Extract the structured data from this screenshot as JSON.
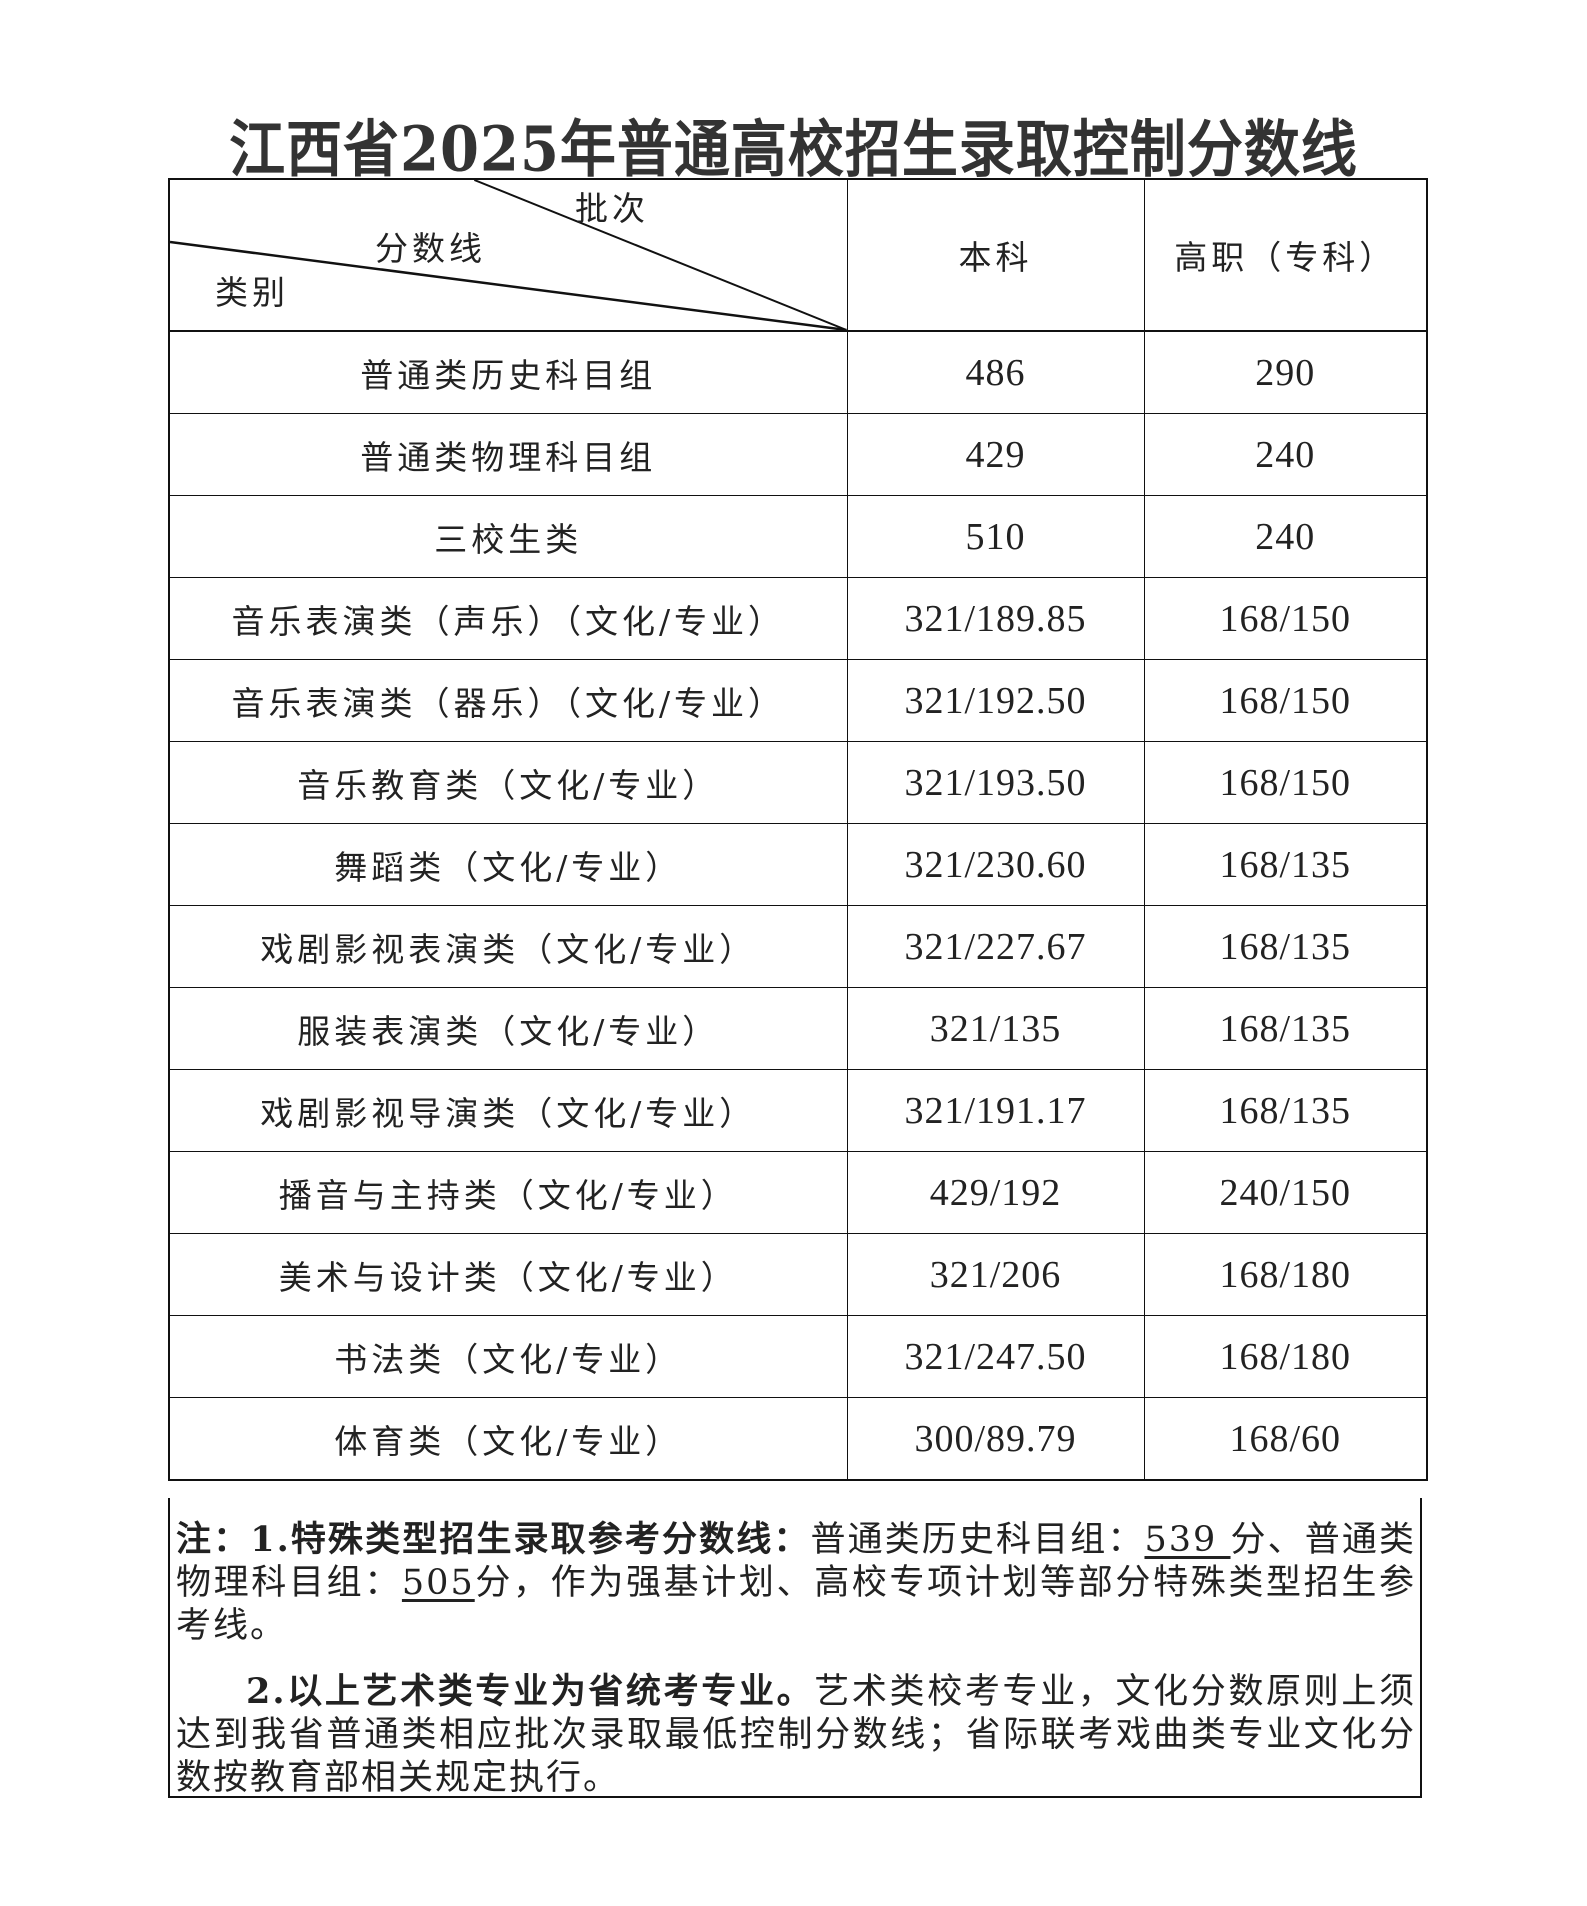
{
  "title": "江西省2025年普通高校招生录取控制分数线",
  "header": {
    "diag_batch": "批次",
    "diag_score": "分数线",
    "diag_category": "类别",
    "col_undergrad": "本科",
    "col_vocational": "高职（专科）"
  },
  "rows": [
    {
      "category": "普通类历史科目组",
      "undergrad": "486",
      "vocational": "290"
    },
    {
      "category": "普通类物理科目组",
      "undergrad": "429",
      "vocational": "240"
    },
    {
      "category": "三校生类",
      "undergrad": "510",
      "vocational": "240"
    },
    {
      "category": "音乐表演类（声乐）（文化/专业）",
      "undergrad": "321/189.85",
      "vocational": "168/150"
    },
    {
      "category": "音乐表演类（器乐）（文化/专业）",
      "undergrad": "321/192.50",
      "vocational": "168/150"
    },
    {
      "category": "音乐教育类（文化/专业）",
      "undergrad": "321/193.50",
      "vocational": "168/150"
    },
    {
      "category": "舞蹈类（文化/专业）",
      "undergrad": "321/230.60",
      "vocational": "168/135"
    },
    {
      "category": "戏剧影视表演类（文化/专业）",
      "undergrad": "321/227.67",
      "vocational": "168/135"
    },
    {
      "category": "服装表演类（文化/专业）",
      "undergrad": "321/135",
      "vocational": "168/135"
    },
    {
      "category": "戏剧影视导演类（文化/专业）",
      "undergrad": "321/191.17",
      "vocational": "168/135"
    },
    {
      "category": "播音与主持类（文化/专业）",
      "undergrad": "429/192",
      "vocational": "240/150"
    },
    {
      "category": "美术与设计类（文化/专业）",
      "undergrad": "321/206",
      "vocational": "168/180"
    },
    {
      "category": "书法类（文化/专业）",
      "undergrad": "321/247.50",
      "vocational": "168/180"
    },
    {
      "category": "体育类（文化/专业）",
      "undergrad": "300/89.79",
      "vocational": "168/60"
    }
  ],
  "note": {
    "p1_lead": "注：1.特殊类型招生录取参考分数线：",
    "p1_a": "普通类历史科目组：",
    "p1_v1": "539 ",
    "p1_b": "分、普通类物理科目组：",
    "p1_v2": "505",
    "p1_c": "分，作为强基计划、高校专项计划等部分特殊类型招生参考线。",
    "p2_lead": "2.以上艺术类专业为省统考专业。",
    "p2_rest": "艺术类校考专业，文化分数原则上须达到我省普通类相应批次录取最低控制分数线；省际联考戏曲类专业文化分数按教育部相关规定执行。"
  }
}
